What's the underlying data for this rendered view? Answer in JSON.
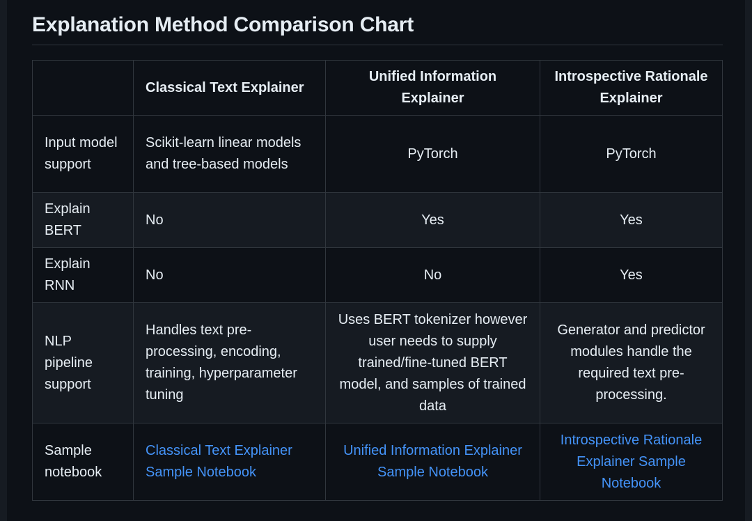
{
  "title": "Explanation Method Comparison Chart",
  "table": {
    "headers": [
      "",
      "Classical Text Explainer",
      "Unified Information Explainer",
      "Introspective Rationale Explainer"
    ],
    "rows": [
      {
        "label": "Input model support",
        "cells": [
          "Scikit-learn linear models and tree-based models",
          "PyTorch",
          "PyTorch"
        ]
      },
      {
        "label": "Explain BERT",
        "cells": [
          "No",
          "Yes",
          "Yes"
        ]
      },
      {
        "label": "Explain RNN",
        "cells": [
          "No",
          "No",
          "Yes"
        ]
      },
      {
        "label": "NLP pipeline support",
        "cells": [
          "Handles text pre-processing, encoding, training, hyperparameter tuning",
          "Uses BERT tokenizer however user needs to supply trained/fine-tuned BERT model, and samples of trained data",
          "Generator and predictor modules handle the required text pre-processing."
        ]
      },
      {
        "label": "Sample notebook",
        "links": [
          "Classical Text Explainer Sample Notebook",
          "Unified Information Explainer Sample Notebook",
          "Introspective Rationale Explainer Sample Notebook"
        ]
      }
    ]
  },
  "colors": {
    "background": "#0d1117",
    "row_alt": "#161b22",
    "border": "#30363d",
    "text": "#e6edf3",
    "link": "#4493f8"
  }
}
